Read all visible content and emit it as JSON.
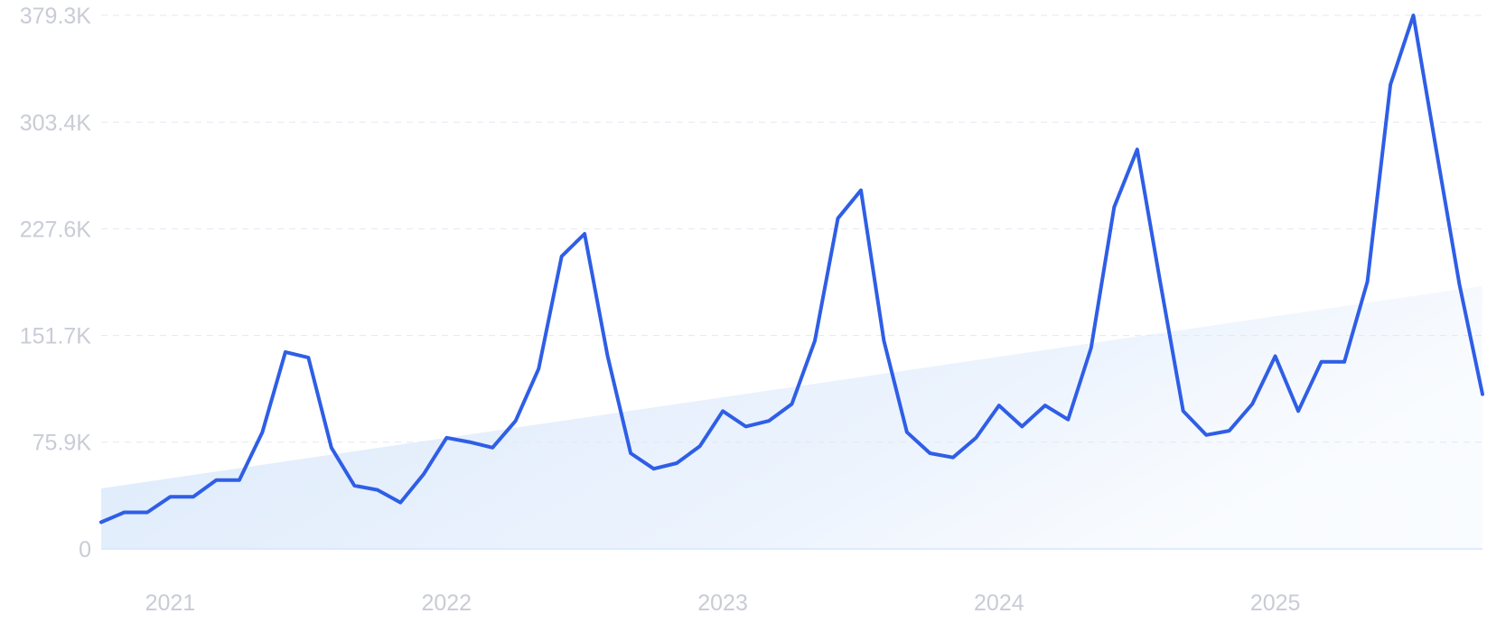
{
  "chart_data": {
    "type": "line",
    "title": "",
    "xlabel": "",
    "ylabel": "",
    "ylim": [
      0,
      379300
    ],
    "y_ticks": [
      {
        "value": 0,
        "label": "0"
      },
      {
        "value": 75900,
        "label": "75.9K"
      },
      {
        "value": 151700,
        "label": "151.7K"
      },
      {
        "value": 227600,
        "label": "227.6K"
      },
      {
        "value": 303400,
        "label": "303.4K"
      },
      {
        "value": 379300,
        "label": "379.3K"
      }
    ],
    "x_ticks": [
      {
        "value": "2021-01",
        "label": "2021"
      },
      {
        "value": "2022-01",
        "label": "2022"
      },
      {
        "value": "2023-01",
        "label": "2023"
      },
      {
        "value": "2024-01",
        "label": "2024"
      },
      {
        "value": "2025-01",
        "label": "2025"
      }
    ],
    "xlim": [
      "2020-10",
      "2025-10"
    ],
    "grid": "horizontal dashed",
    "legend": "none",
    "series": [
      {
        "color": "#2f5ee6",
        "x": [
          "2020-10",
          "2020-11",
          "2020-12",
          "2021-01",
          "2021-02",
          "2021-03",
          "2021-04",
          "2021-05",
          "2021-06",
          "2021-07",
          "2021-08",
          "2021-09",
          "2021-10",
          "2021-11",
          "2021-12",
          "2022-01",
          "2022-02",
          "2022-03",
          "2022-04",
          "2022-05",
          "2022-06",
          "2022-07",
          "2022-08",
          "2022-09",
          "2022-10",
          "2022-11",
          "2022-12",
          "2023-01",
          "2023-02",
          "2023-03",
          "2023-04",
          "2023-05",
          "2023-06",
          "2023-07",
          "2023-08",
          "2023-09",
          "2023-10",
          "2023-11",
          "2023-12",
          "2024-01",
          "2024-02",
          "2024-03",
          "2024-04",
          "2024-05",
          "2024-06",
          "2024-07",
          "2024-08",
          "2024-09",
          "2024-10",
          "2024-11",
          "2024-12",
          "2025-01",
          "2025-02",
          "2025-03",
          "2025-04",
          "2025-05",
          "2025-06",
          "2025-07",
          "2025-08",
          "2025-09",
          "2025-10"
        ],
        "values": [
          19000,
          26000,
          26000,
          37000,
          37000,
          49000,
          49000,
          83000,
          140000,
          136000,
          72000,
          45000,
          42000,
          33000,
          53000,
          79000,
          76000,
          72000,
          91000,
          128000,
          208000,
          224000,
          137000,
          68000,
          57000,
          61000,
          73000,
          98000,
          87000,
          91000,
          103000,
          148000,
          235000,
          255000,
          148000,
          83000,
          68000,
          65000,
          79000,
          102000,
          87000,
          102000,
          92000,
          143000,
          243000,
          284000,
          190000,
          98000,
          81000,
          84000,
          103000,
          137000,
          98000,
          133000,
          133000,
          190000,
          330000,
          379300,
          283000,
          188000,
          110000
        ]
      }
    ],
    "trend_area": {
      "color": "#dbe9fb",
      "start": {
        "x": "2020-10",
        "y": 43000
      },
      "end": {
        "x": "2025-10",
        "y": 187000
      }
    }
  }
}
